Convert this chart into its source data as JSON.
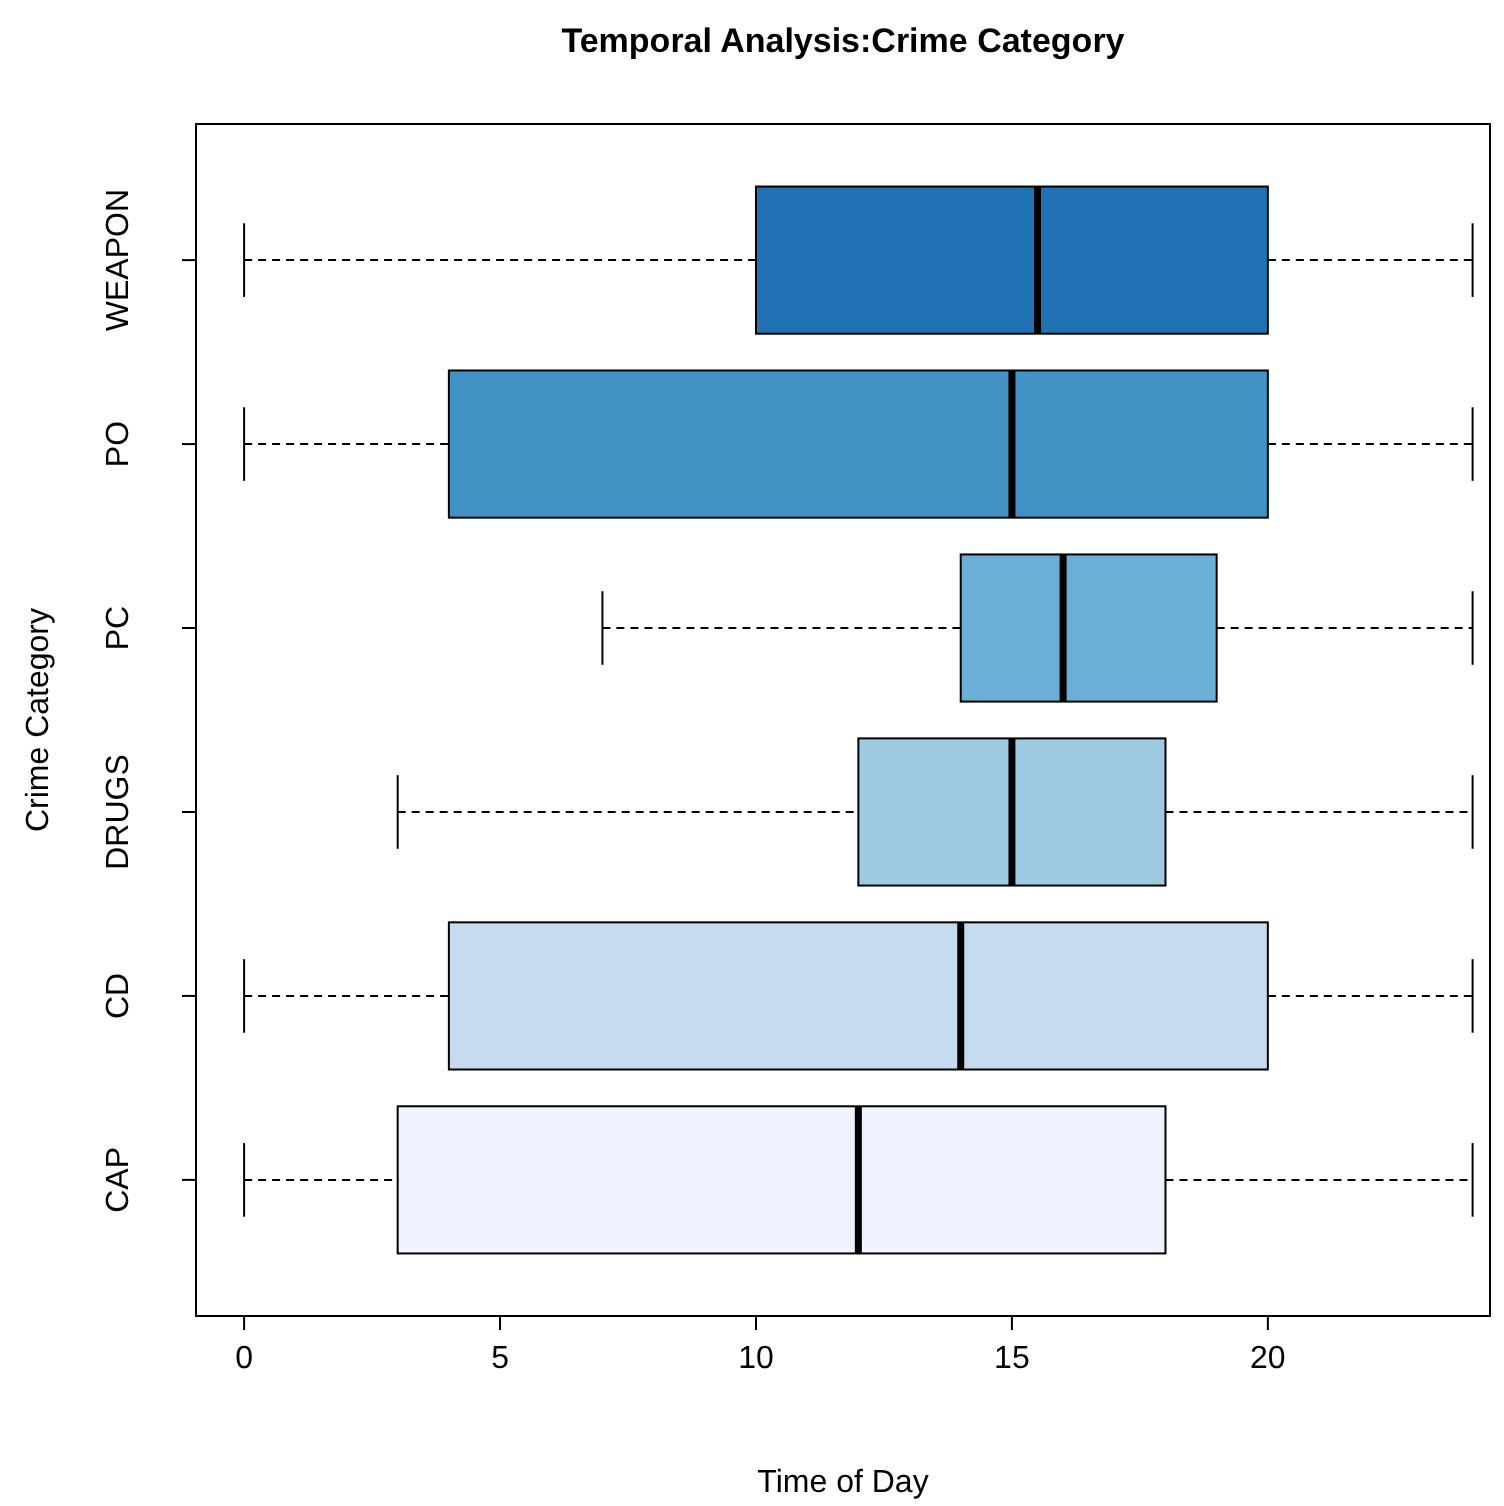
{
  "chart_data": {
    "type": "box",
    "orientation": "horizontal",
    "title": "Temporal Analysis:Crime Category",
    "xlabel": "Time of Day",
    "ylabel": "Crime Category",
    "categories": [
      "WEAPON",
      "PO",
      "PC",
      "DRUGS",
      "CD",
      "CAP"
    ],
    "boxes": [
      {
        "low": 0,
        "q1": 10,
        "median": 15.5,
        "q3": 20,
        "high": 24
      },
      {
        "low": 0,
        "q1": 4,
        "median": 15,
        "q3": 20,
        "high": 24
      },
      {
        "low": 7,
        "q1": 14,
        "median": 16,
        "q3": 19,
        "high": 24
      },
      {
        "low": 3,
        "q1": 12,
        "median": 15,
        "q3": 18,
        "high": 24
      },
      {
        "low": 0,
        "q1": 4,
        "median": 14,
        "q3": 20,
        "high": 24
      },
      {
        "low": 0,
        "q1": 3,
        "median": 12,
        "q3": 18,
        "high": 24
      }
    ],
    "colors": [
      "#2171b5",
      "#4292c6",
      "#6baed6",
      "#9ecae1",
      "#c6dbef",
      "#eff3ff"
    ],
    "xlim": [
      -0.94,
      24.34
    ],
    "xticks": [
      0,
      5,
      10,
      15,
      20
    ]
  }
}
